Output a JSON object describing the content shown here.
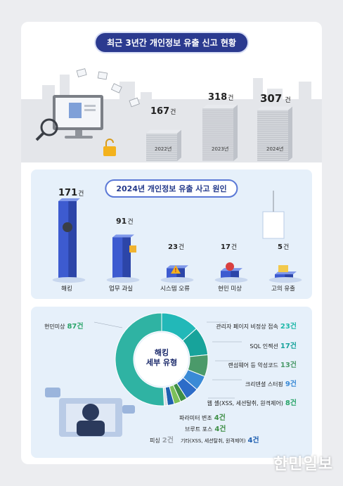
{
  "section1": {
    "title": "최근 3년간 개인정보 유출 신고 현황",
    "unit": "건"
  },
  "section2": {
    "title": "2024년 개인정보 유출 사고 원인",
    "unit": "건"
  },
  "section3": {
    "center_title_1": "해킹",
    "center_title_2": "세부 유형",
    "unit": "건"
  },
  "watermark": "한민일보",
  "colors": {
    "navy": "#2b3a8f",
    "bar_blue": "#3d5bd0",
    "panel_bg": "#e6f0fa",
    "teal": "#1fb8a9",
    "green_text": "#2aa56a"
  },
  "chart_data": [
    {
      "type": "bar",
      "title": "최근 3년간 개인정보 유출 신고 현황",
      "categories": [
        "2022년",
        "2023년",
        "2024년"
      ],
      "values": [
        167,
        318,
        307
      ],
      "value_labels": [
        "167",
        "318",
        "307"
      ]
    },
    {
      "type": "bar",
      "title": "2024년 개인정보 유출 사고 원인",
      "categories": [
        "해킹",
        "업무 과실",
        "시스템 오류",
        "현민 미상",
        "고의 유출"
      ],
      "values": [
        171,
        91,
        23,
        17,
        5
      ],
      "value_labels": [
        "171",
        "91",
        "23",
        "17",
        "5"
      ]
    },
    {
      "type": "pie",
      "title": "해킹 세부 유형",
      "categories": [
        "관리자 페이지 비정상 접속",
        "SQL 인젝션",
        "랜섬웨어 등 악성코드",
        "크리덴셜 스터핑",
        "웹 셸(XSS, 세션탈취, 원격제어)",
        "파라미터 변조",
        "브루트 포스",
        "기타(XSS, 세션탈취, 원격제어)",
        "피싱",
        "현민미상"
      ],
      "values": [
        23,
        17,
        13,
        9,
        8,
        4,
        4,
        4,
        2,
        87
      ],
      "value_labels": [
        "23건",
        "17건",
        "13건",
        "9건",
        "8건",
        "4건",
        "4건",
        "4건",
        "2건",
        "87건"
      ],
      "colors": [
        "#22b8b8",
        "#17a39b",
        "#4b9a6a",
        "#3a8ad6",
        "#2d6cc8",
        "#3f8f46",
        "#7cc05a",
        "#1f5fb0",
        "#d9dde3",
        "#2fb3a3"
      ]
    }
  ]
}
